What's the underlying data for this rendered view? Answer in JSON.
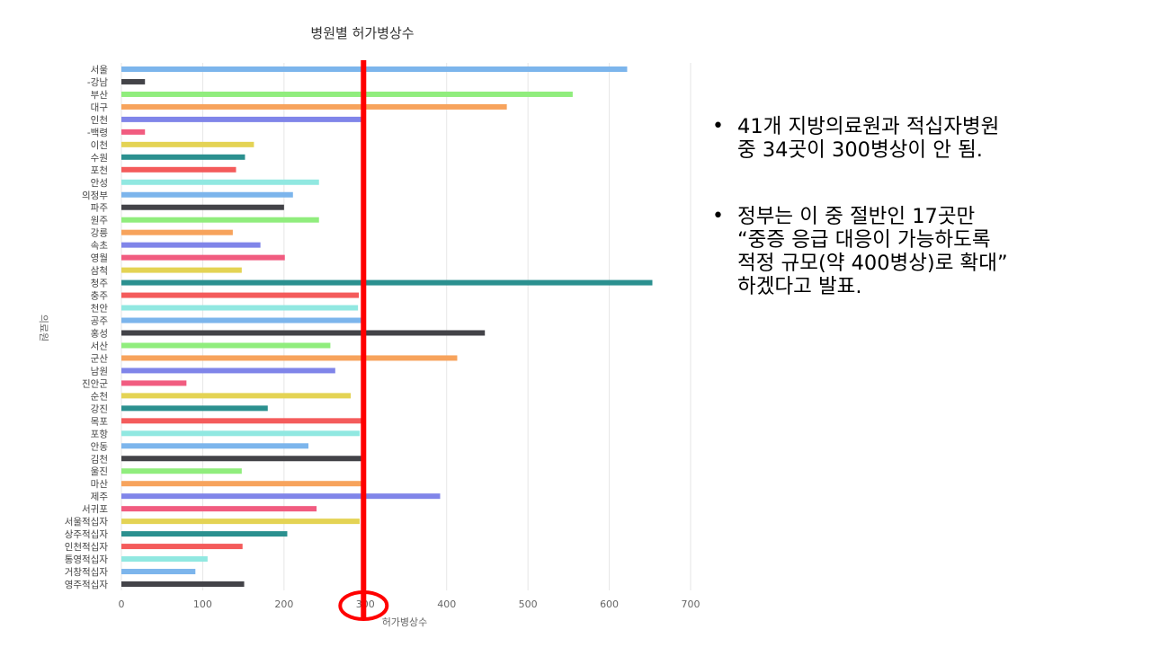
{
  "chart_data": {
    "type": "bar",
    "orientation": "horizontal",
    "title": "병원별 허가병상수",
    "xlabel": "허가병상수",
    "ylabel": "의료원",
    "xlim": [
      0,
      700
    ],
    "xticks": [
      0,
      100,
      200,
      300,
      400,
      500,
      600,
      700
    ],
    "grid": true,
    "categories": [
      "서울",
      "-강남",
      "부산",
      "대구",
      "인천",
      "-백령",
      "이천",
      "수원",
      "포천",
      "안성",
      "의정부",
      "파주",
      "원주",
      "강릉",
      "속초",
      "영월",
      "삼척",
      "청주",
      "충주",
      "천안",
      "공주",
      "홍성",
      "서산",
      "군산",
      "남원",
      "진안군",
      "순천",
      "강진",
      "목포",
      "포항",
      "안동",
      "김천",
      "울진",
      "마산",
      "제주",
      "서귀포",
      "서울적십자",
      "상주적십자",
      "인천적십자",
      "통영적십자",
      "거창적십자",
      "영주적십자"
    ],
    "values": [
      622,
      29,
      555,
      474,
      300,
      29,
      163,
      152,
      141,
      243,
      211,
      200,
      243,
      137,
      171,
      201,
      148,
      653,
      292,
      291,
      298,
      447,
      257,
      413,
      263,
      80,
      282,
      180,
      300,
      293,
      230,
      300,
      148,
      300,
      392,
      240,
      293,
      204,
      149,
      106,
      91,
      151
    ],
    "colors": [
      "#7cb5ec",
      "#434348",
      "#90ed7d",
      "#f7a35c",
      "#8085e9",
      "#f15c80",
      "#e4d354",
      "#2b908f",
      "#f45b5b",
      "#91e8e1"
    ],
    "annotations": {
      "reference_line_value": 300,
      "reference_line_color": "#ff0000",
      "circled_tick": "300"
    }
  },
  "bullets": [
    {
      "lines": [
        "41개 지방의료원과 적십자병원",
        "중 34곳이 300병상이 안 됨."
      ]
    },
    {
      "lines": [
        " 정부는 이 중 절반인 17곳만",
        "“중증 응급 대응이 가능하도록",
        "적정 규모(약 400병상)로 확대”",
        "하겠다고 발표."
      ]
    }
  ],
  "bullet_symbol": "•"
}
